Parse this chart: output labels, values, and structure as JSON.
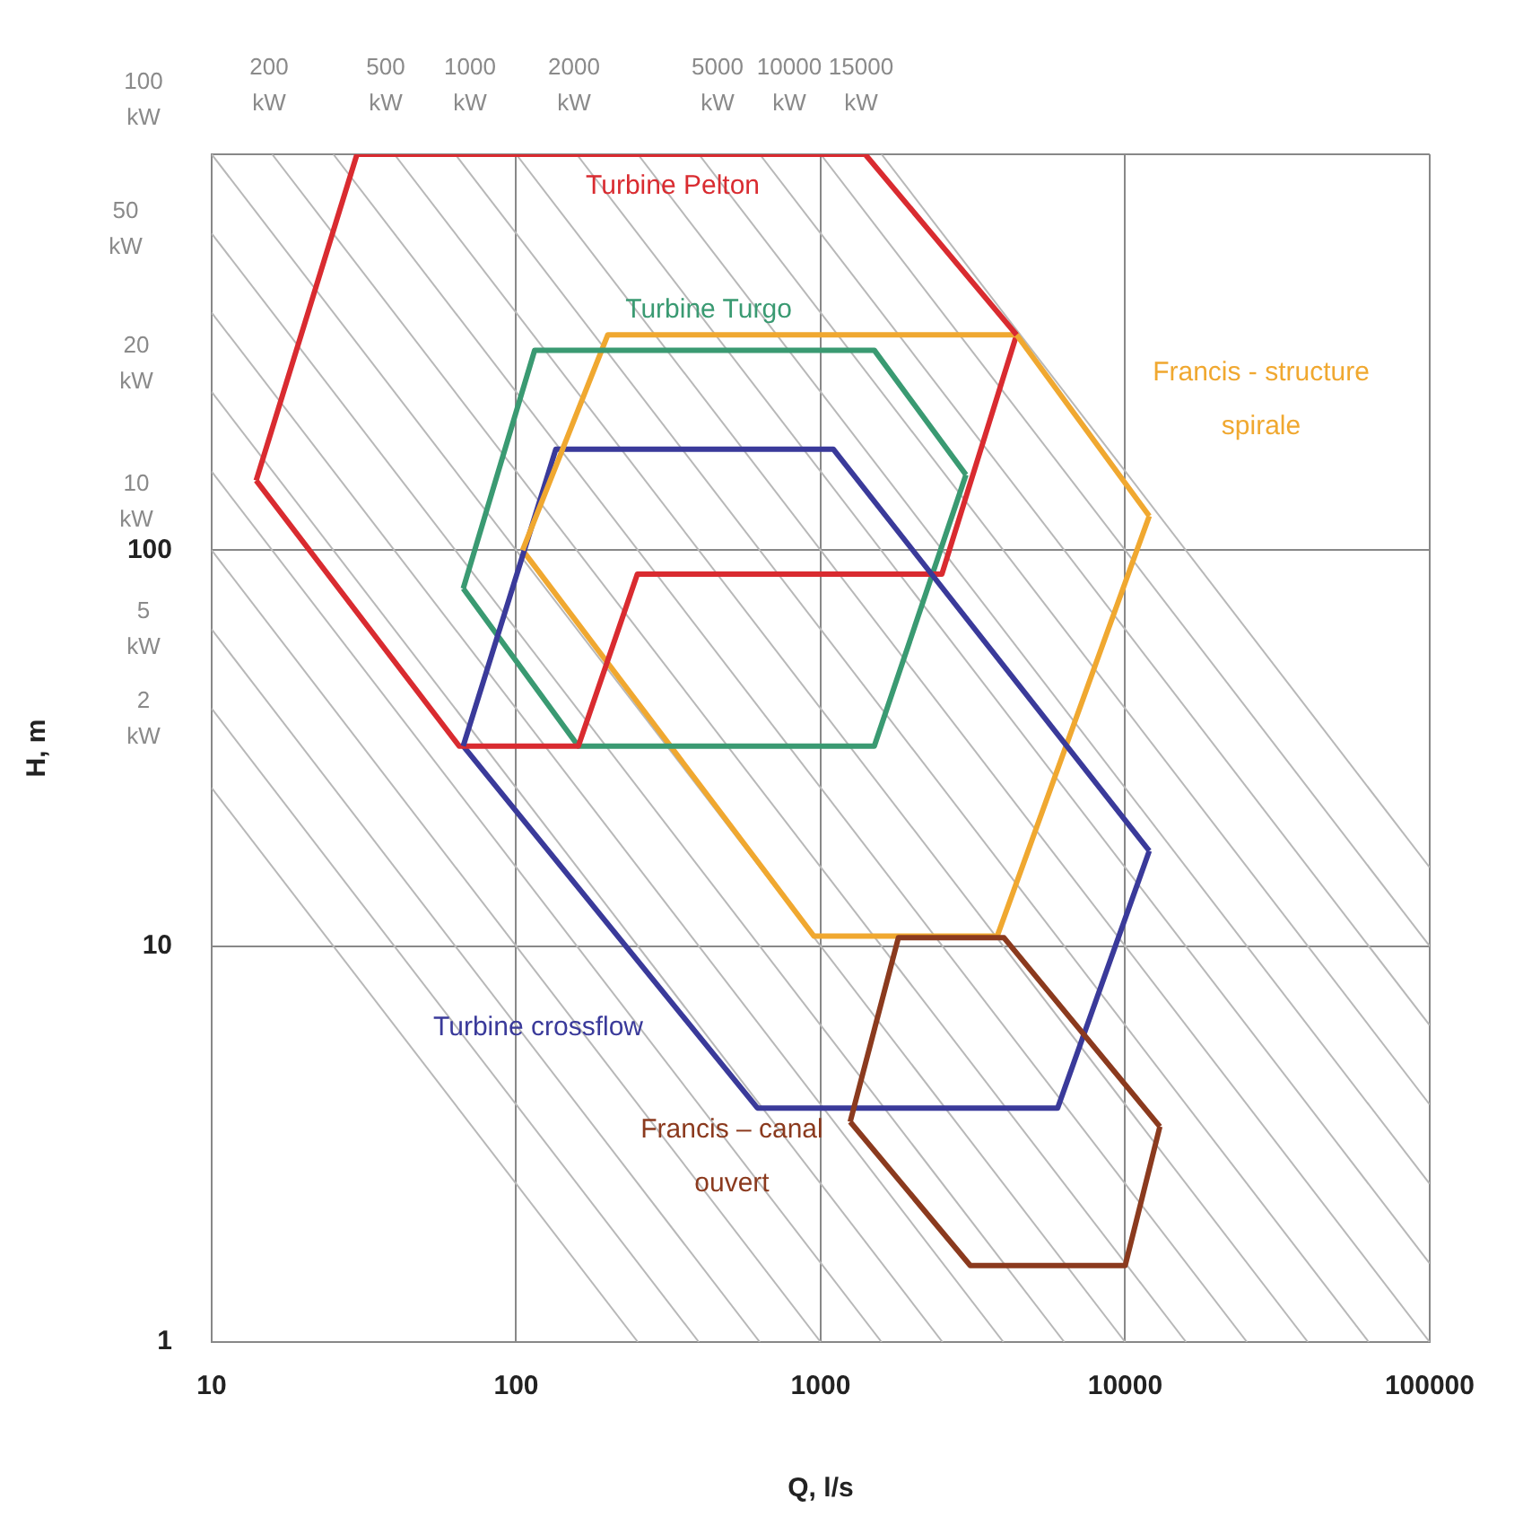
{
  "chart_data": {
    "type": "line",
    "xlabel": "Q, l/s",
    "ylabel": "H, m",
    "log": "xy",
    "grid": true,
    "legend": false,
    "marker": "none",
    "xlim": [
      10,
      100000
    ],
    "xticks": [
      10,
      100,
      1000,
      10000,
      100000
    ],
    "ylim": [
      1,
      1000
    ],
    "yticks": [
      1,
      10,
      100,
      {
        "value": 1000,
        "label": null
      }
    ],
    "annotations": [
      "100 kW",
      "200 kW",
      "500 kW",
      "1000 kW",
      "2000 kW",
      "5000 kW",
      "10000 kW",
      "15000 kW",
      "50 kW",
      "20 kW",
      "10 kW",
      "5 kW",
      "2 kW"
    ],
    "series": [
      {
        "name": "Turbine Pelton",
        "color": "#d92b30",
        "x": [
          14,
          30,
          1400,
          4400
        ],
        "values": [
          150,
          1000,
          1000,
          350
        ]
      },
      {
        "name": "Turbine Turgo",
        "color": "#3a9a72",
        "x": [
          67,
          115,
          1500,
          3000
        ],
        "values": [
          80,
          320,
          320,
          155
        ]
      },
      {
        "name": "Francis - structure spirale",
        "color": "#f0a830",
        "x": [
          105,
          200,
          4400,
          12000
        ],
        "values": [
          100,
          350,
          350,
          122
        ]
      },
      {
        "name": "Turbine crossflow",
        "color": "#3a3a9a",
        "x": [
          67,
          135,
          1100,
          12000
        ],
        "values": [
          32,
          180,
          180,
          17.4
        ]
      },
      {
        "name": "Francis – canal ouvert",
        "color": "#8b3a1e",
        "x": [
          1250,
          1800,
          4000,
          13000
        ],
        "values": [
          3.6,
          10.5,
          10.5,
          3.5
        ]
      },
      {
        "color": "#d92b30",
        "x": [
          14,
          65,
          160,
          250,
          2500,
          4400
        ],
        "values": [
          150,
          32,
          32,
          87,
          87,
          350
        ]
      },
      {
        "color": "#3a9a72",
        "x": [
          67,
          160,
          1500,
          3000
        ],
        "values": [
          80,
          32,
          32,
          155
        ]
      },
      {
        "color": "#f0a830",
        "x": [
          105,
          950,
          3800,
          12000
        ],
        "values": [
          100,
          10.6,
          10.6,
          122
        ]
      },
      {
        "color": "#3a3a9a",
        "x": [
          67,
          620,
          6000,
          12000
        ],
        "values": [
          32,
          3.9,
          3.9,
          17.4
        ]
      },
      {
        "color": "#8b3a1e",
        "x": [
          1250,
          3100,
          10000,
          13000
        ],
        "values": [
          3.6,
          1.56,
          1.56,
          3.5
        ]
      },
      {
        "color": "#b8b8b8",
        "x": [
          10,
          251
        ],
        "values": [
          25.1,
          1
        ]
      },
      {
        "color": "#b8b8b8",
        "x": [
          10,
          398
        ],
        "values": [
          39.8,
          1
        ]
      },
      {
        "color": "#b8b8b8",
        "x": [
          10,
          631
        ],
        "values": [
          63.1,
          1
        ]
      },
      {
        "color": "#b8b8b8",
        "x": [
          10,
          1000
        ],
        "values": [
          100,
          1
        ]
      },
      {
        "color": "#b8b8b8",
        "x": [
          10,
          1585
        ],
        "values": [
          158,
          1
        ]
      },
      {
        "color": "#b8b8b8",
        "x": [
          10,
          2512
        ],
        "values": [
          251,
          1
        ]
      },
      {
        "color": "#b8b8b8",
        "x": [
          10,
          3981
        ],
        "values": [
          398,
          1
        ]
      },
      {
        "color": "#b8b8b8",
        "x": [
          10,
          6310
        ],
        "values": [
          631,
          1
        ]
      },
      {
        "color": "#b8b8b8",
        "x": [
          10,
          10000
        ],
        "values": [
          1000,
          1
        ]
      },
      {
        "color": "#b8b8b8",
        "x": [
          15.8,
          15850
        ],
        "values": [
          1000,
          1
        ]
      },
      {
        "color": "#b8b8b8",
        "x": [
          25.1,
          25120
        ],
        "values": [
          1000,
          1
        ]
      },
      {
        "color": "#b8b8b8",
        "x": [
          39.8,
          39810
        ],
        "values": [
          1000,
          1
        ]
      },
      {
        "color": "#b8b8b8",
        "x": [
          63.1,
          63100
        ],
        "values": [
          1000,
          1
        ]
      },
      {
        "color": "#b8b8b8",
        "x": [
          100,
          100000
        ],
        "values": [
          1000,
          1
        ]
      },
      {
        "color": "#b8b8b8",
        "x": [
          158,
          100000
        ],
        "values": [
          1000,
          1.58
        ]
      },
      {
        "color": "#b8b8b8",
        "x": [
          251,
          100000
        ],
        "values": [
          1000,
          2.51
        ]
      },
      {
        "color": "#b8b8b8",
        "x": [
          398,
          100000
        ],
        "values": [
          1000,
          3.98
        ]
      },
      {
        "color": "#b8b8b8",
        "x": [
          631,
          100000
        ],
        "values": [
          1000,
          6.31
        ]
      },
      {
        "color": "#b8b8b8",
        "x": [
          1000,
          100000
        ],
        "values": [
          1000,
          10
        ]
      },
      {
        "color": "#b8b8b8",
        "x": [
          1585,
          100000
        ],
        "values": [
          1000,
          15.8
        ]
      }
    ]
  }
}
